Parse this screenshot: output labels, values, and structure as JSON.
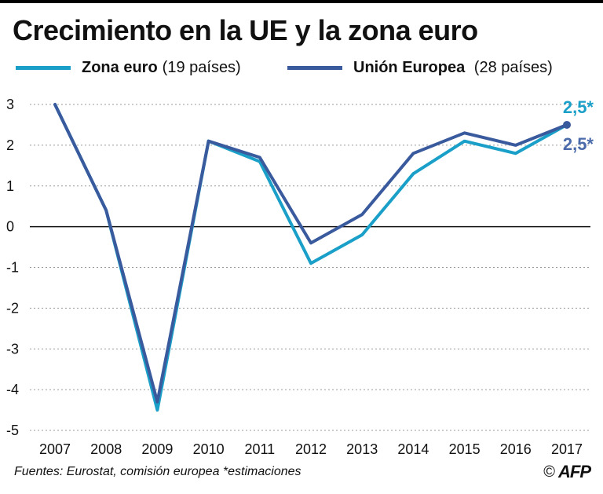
{
  "title": "Crecimiento en la UE y la zona euro",
  "legend": [
    {
      "name": "Zona euro",
      "detail": "(19 países)",
      "color": "#1aa0c8"
    },
    {
      "name": "Unión Europea",
      "detail": " (28 países)",
      "color": "#3a5a9e"
    }
  ],
  "chart_data": {
    "type": "line",
    "title": "Crecimiento en la UE y la zona euro",
    "x": [
      "2007",
      "2008",
      "2009",
      "2010",
      "2011",
      "2012",
      "2013",
      "2014",
      "2015",
      "2016",
      "2017"
    ],
    "y_ticks": [
      "3",
      "2",
      "1",
      "0",
      "-1",
      "-2",
      "-3",
      "-4",
      "-5"
    ],
    "ylim": [
      -5,
      3
    ],
    "grid": true,
    "series": [
      {
        "name": "Zona euro (19 países)",
        "color": "#1aa0c8",
        "values": [
          3.0,
          0.4,
          -4.5,
          2.1,
          1.6,
          -0.9,
          -0.2,
          1.3,
          2.1,
          1.8,
          2.5
        ]
      },
      {
        "name": "Unión Europea (28 países)",
        "color": "#3a5a9e",
        "values": [
          3.0,
          0.4,
          -4.3,
          2.1,
          1.7,
          -0.4,
          0.3,
          1.8,
          2.3,
          2.0,
          2.5
        ]
      }
    ],
    "annotations": [
      {
        "text": "2,5*",
        "series": 0,
        "color": "#1aa0c8"
      },
      {
        "text": "2,5*",
        "series": 1,
        "color": "#4a6aaa"
      }
    ]
  },
  "footer": {
    "source": "Fuentes: Eurostat, comisión europea  *estimaciones",
    "copyright": "©",
    "logo": "AFP"
  }
}
